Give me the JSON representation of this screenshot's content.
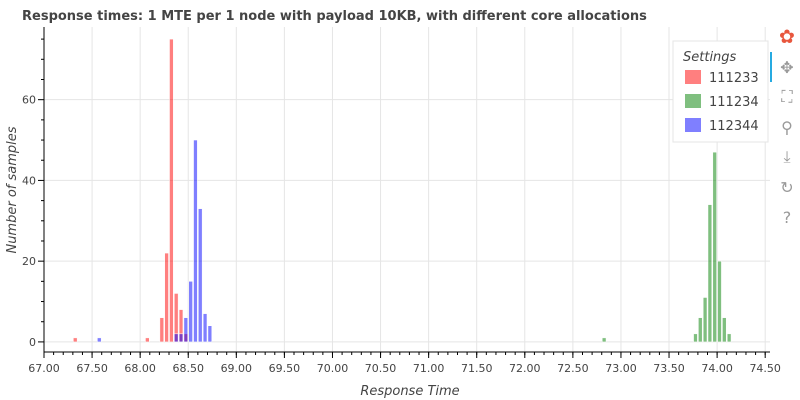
{
  "chart_data": {
    "type": "bar",
    "title": "Response times: 1 MTE per 1 node with payload 10KB, with different core allocations",
    "xlabel": "Response Time",
    "ylabel": "Number of samples",
    "xlim": [
      67.0,
      74.55
    ],
    "ylim": [
      -2.5,
      78
    ],
    "bin_width": 0.05,
    "x_ticks": [
      "67.00",
      "67.50",
      "68.00",
      "68.50",
      "69.00",
      "69.50",
      "70.00",
      "70.50",
      "71.00",
      "71.50",
      "72.00",
      "72.50",
      "73.00",
      "73.50",
      "74.00",
      "74.50"
    ],
    "x_tick_values": [
      67.0,
      67.5,
      68.0,
      68.5,
      69.0,
      69.5,
      70.0,
      70.5,
      71.0,
      71.5,
      72.0,
      72.5,
      73.0,
      73.5,
      74.0,
      74.5
    ],
    "y_ticks": [
      0,
      20,
      40,
      60
    ],
    "grid": true,
    "legend": {
      "title": "Settings",
      "placement": "top-right"
    },
    "series": [
      {
        "name": "111233",
        "color": "#ff0000",
        "alpha": 0.5,
        "bins": [
          {
            "x": 67.325,
            "y": 1
          },
          {
            "x": 68.075,
            "y": 1
          },
          {
            "x": 68.225,
            "y": 6
          },
          {
            "x": 68.275,
            "y": 22
          },
          {
            "x": 68.325,
            "y": 75
          },
          {
            "x": 68.375,
            "y": 12
          },
          {
            "x": 68.425,
            "y": 8
          },
          {
            "x": 68.475,
            "y": 2
          }
        ]
      },
      {
        "name": "111234",
        "color": "#008000",
        "alpha": 0.5,
        "bins": [
          {
            "x": 72.825,
            "y": 1
          },
          {
            "x": 73.775,
            "y": 2
          },
          {
            "x": 73.825,
            "y": 6
          },
          {
            "x": 73.875,
            "y": 11
          },
          {
            "x": 73.925,
            "y": 34
          },
          {
            "x": 73.975,
            "y": 47
          },
          {
            "x": 74.025,
            "y": 20
          },
          {
            "x": 74.075,
            "y": 6
          },
          {
            "x": 74.125,
            "y": 2
          }
        ]
      },
      {
        "name": "112344",
        "color": "#0000ff",
        "alpha": 0.5,
        "bins": [
          {
            "x": 67.575,
            "y": 1
          },
          {
            "x": 68.375,
            "y": 2
          },
          {
            "x": 68.425,
            "y": 2
          },
          {
            "x": 68.475,
            "y": 6
          },
          {
            "x": 68.525,
            "y": 15
          },
          {
            "x": 68.575,
            "y": 50
          },
          {
            "x": 68.625,
            "y": 33
          },
          {
            "x": 68.675,
            "y": 7
          },
          {
            "x": 68.725,
            "y": 4
          }
        ]
      }
    ]
  },
  "toolbar": {
    "tools": [
      {
        "name": "bokeh-logo-icon",
        "glyph": "✿",
        "interactable": false
      },
      {
        "name": "pan-tool-icon",
        "glyph": "✥",
        "interactable": true
      },
      {
        "name": "box-zoom-tool-icon",
        "glyph": "⛶",
        "interactable": true
      },
      {
        "name": "wheel-zoom-tool-icon",
        "glyph": "⚲",
        "interactable": true
      },
      {
        "name": "save-tool-icon",
        "glyph": "⤓",
        "interactable": true
      },
      {
        "name": "reset-tool-icon",
        "glyph": "↻",
        "interactable": true
      },
      {
        "name": "help-tool-icon",
        "glyph": "?",
        "interactable": true
      }
    ]
  }
}
